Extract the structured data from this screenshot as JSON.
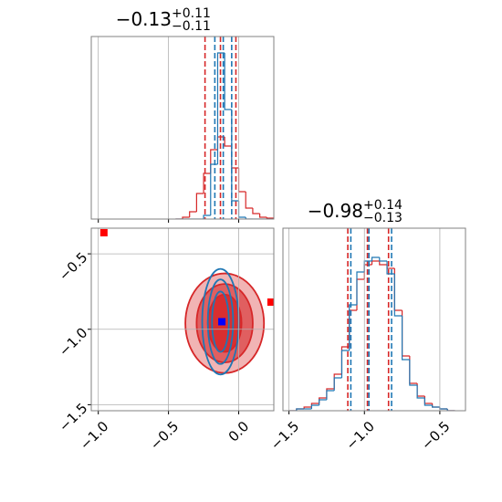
{
  "chart_data": [
    {
      "type": "histogram",
      "title": "−0.13",
      "title_upper": "+0.11",
      "title_lower": "−0.11",
      "bins": [
        -0.45,
        -0.4,
        -0.35,
        -0.3,
        -0.25,
        -0.2,
        -0.15,
        -0.1,
        -0.05,
        0,
        0.05,
        0.1,
        0.15,
        0.2,
        0.25
      ],
      "series": [
        {
          "color": "#d62728",
          "values": [
            0,
            1,
            4,
            14,
            25,
            38,
            45,
            40,
            28,
            15,
            6,
            3,
            1,
            0.5
          ],
          "quantiles": [
            -0.24,
            -0.13,
            -0.02
          ]
        },
        {
          "color": "#1f77b4",
          "values": [
            0,
            0,
            0,
            0,
            2,
            30,
            91,
            60,
            10,
            1,
            0,
            0,
            0,
            0
          ],
          "quantiles": [
            -0.17,
            -0.11,
            -0.05
          ]
        }
      ],
      "xlim": [
        -1.05,
        0.25
      ],
      "ylim": [
        0,
        100
      ],
      "xticks": [
        -1,
        -0.5,
        0
      ],
      "grid": true
    },
    {
      "type": "contour",
      "series": [
        {
          "color": "#d62728",
          "center": [
            -0.1,
            -0.96
          ],
          "levels": [
            [
              0.28,
              0.33
            ],
            [
              0.2,
              0.26
            ],
            [
              0.12,
              0.19
            ]
          ]
        },
        {
          "color": "#1f77b4",
          "center": [
            -0.13,
            -0.95
          ],
          "levels": [
            [
              0.13,
              0.35
            ],
            [
              0.09,
              0.28
            ],
            [
              0.06,
              0.2
            ]
          ]
        }
      ],
      "points": [
        {
          "color": "#ff0000",
          "x": -0.96,
          "y": -0.36
        },
        {
          "color": "#ff0000",
          "x": 0.23,
          "y": -0.82
        },
        {
          "color": "#0000ff",
          "x": -0.12,
          "y": -0.95
        }
      ],
      "xlim": [
        -1.05,
        0.25
      ],
      "ylim": [
        -1.54,
        -0.33
      ],
      "xticks": [
        {
          "value": -1,
          "label": "−1.0"
        },
        {
          "value": -0.5,
          "label": "−0.5"
        },
        {
          "value": 0,
          "label": "0.0"
        }
      ],
      "yticks": [
        {
          "value": -0.5,
          "label": "−0.5"
        },
        {
          "value": -1,
          "label": "−1.0"
        },
        {
          "value": -1.5,
          "label": "−1.5"
        }
      ],
      "grid": true
    },
    {
      "type": "histogram",
      "title": "−0.98",
      "title_upper": "+0.14",
      "title_lower": "−0.13",
      "bins": [
        -1.5,
        -1.45,
        -1.4,
        -1.35,
        -1.3,
        -1.25,
        -1.2,
        -1.15,
        -1.1,
        -1.05,
        -1,
        -0.95,
        -0.9,
        -0.85,
        -0.8,
        -0.75,
        -0.7,
        -0.65,
        -0.6,
        -0.55,
        -0.5,
        -0.45,
        -0.4
      ],
      "series": [
        {
          "color": "#d62728",
          "values": [
            0,
            1,
            2,
            4,
            7,
            12,
            20,
            35,
            55,
            72,
            80,
            82,
            80,
            78,
            55,
            30,
            15,
            8,
            4,
            2,
            1,
            0
          ],
          "quantiles": [
            -1.11,
            -0.98,
            -0.84
          ]
        },
        {
          "color": "#1f77b4",
          "values": [
            0,
            1,
            1,
            3,
            6,
            11,
            18,
            33,
            58,
            76,
            82,
            84,
            82,
            75,
            52,
            28,
            14,
            7,
            3,
            2,
            1,
            0
          ],
          "quantiles": [
            -1.09,
            -0.97,
            -0.82
          ]
        }
      ],
      "xlim": [
        -1.54,
        -0.33
      ],
      "ylim": [
        0,
        100
      ],
      "xticks": [
        {
          "value": -1.5,
          "label": "−1.5"
        },
        {
          "value": -1,
          "label": "−1.0"
        },
        {
          "value": -0.5,
          "label": "−0.5"
        }
      ],
      "grid": true
    }
  ]
}
